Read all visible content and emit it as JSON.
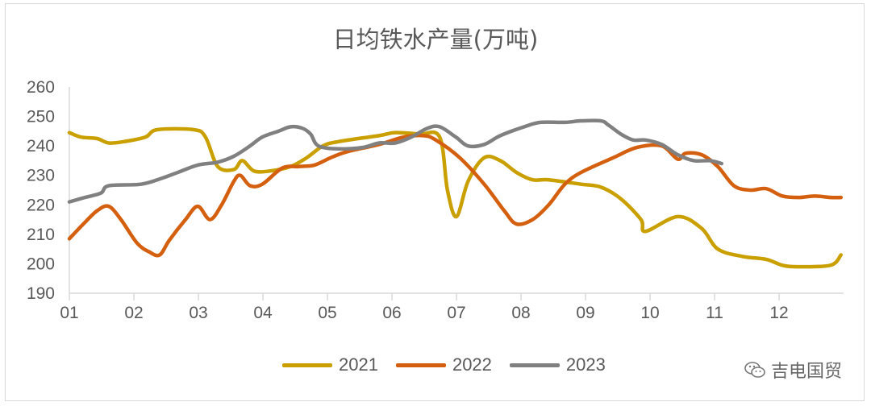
{
  "chart_data": {
    "type": "line",
    "title": "日均铁水产量(万吨)",
    "xlabel": "",
    "ylabel": "",
    "x_ticks": [
      "01",
      "02",
      "03",
      "04",
      "05",
      "06",
      "07",
      "08",
      "09",
      "10",
      "11",
      "12"
    ],
    "xlim": [
      1,
      13
    ],
    "ylim": [
      190,
      260
    ],
    "y_ticks": [
      190,
      200,
      210,
      220,
      230,
      240,
      250,
      260
    ],
    "grid": false,
    "legend_position": "bottom",
    "series": [
      {
        "name": "2021",
        "color": "#C9A000",
        "x": [
          1.0,
          1.18,
          1.43,
          1.61,
          1.86,
          2.18,
          2.36,
          2.93,
          3.11,
          3.3,
          3.55,
          3.68,
          3.86,
          4.11,
          4.43,
          4.68,
          4.93,
          5.18,
          5.8,
          6.05,
          6.43,
          6.74,
          6.86,
          7.0,
          7.18,
          7.43,
          7.68,
          7.93,
          8.18,
          8.43,
          8.93,
          9.24,
          9.55,
          9.86,
          9.93,
          10.43,
          10.8,
          11.05,
          11.43,
          11.8,
          12.05,
          12.3,
          12.8,
          12.96
        ],
        "y": [
          244.5,
          243,
          242.5,
          241,
          241.5,
          243,
          245.5,
          245.5,
          243,
          233,
          232,
          235,
          231.5,
          231.5,
          233,
          236,
          240,
          241.5,
          243.5,
          244.5,
          244,
          243,
          225,
          216,
          228,
          236,
          235,
          231,
          228.5,
          228.5,
          227,
          226,
          222,
          215,
          211,
          216,
          212,
          205,
          202.5,
          201.5,
          199.5,
          199,
          199.5,
          203
        ]
      },
      {
        "name": "2022",
        "color": "#D4600F",
        "x": [
          1.0,
          1.24,
          1.43,
          1.61,
          1.8,
          2.05,
          2.24,
          2.4,
          2.55,
          2.8,
          2.99,
          3.18,
          3.36,
          3.55,
          3.65,
          3.8,
          3.99,
          4.3,
          4.55,
          4.8,
          5.05,
          5.3,
          5.8,
          6.18,
          6.49,
          6.68,
          7.05,
          7.43,
          7.74,
          7.93,
          8.18,
          8.43,
          8.68,
          8.93,
          9.43,
          9.8,
          10.18,
          10.43,
          10.55,
          10.8,
          11.05,
          11.3,
          11.55,
          11.8,
          12.05,
          12.3,
          12.55,
          12.8,
          12.96
        ],
        "y": [
          208.5,
          214,
          218,
          219.5,
          215,
          207,
          204,
          203,
          208,
          215,
          219.5,
          215,
          220,
          228,
          230,
          226.5,
          227,
          232.5,
          233,
          233.5,
          236,
          238,
          240.5,
          243,
          243.5,
          242,
          236,
          227,
          218,
          213.5,
          215,
          220,
          227,
          231,
          236,
          239.5,
          240,
          235.5,
          237.5,
          237,
          233,
          226.5,
          225,
          225.5,
          223,
          222.5,
          223,
          222.5,
          222.5
        ]
      },
      {
        "name": "2023",
        "color": "#808080",
        "x": [
          1.0,
          1.24,
          1.49,
          1.61,
          2.11,
          2.43,
          2.68,
          2.99,
          3.3,
          3.55,
          3.8,
          3.99,
          4.24,
          4.43,
          4.61,
          4.74,
          4.86,
          5.18,
          5.55,
          5.8,
          6.05,
          6.3,
          6.55,
          6.74,
          6.99,
          7.18,
          7.43,
          7.68,
          8.05,
          8.3,
          8.68,
          8.93,
          9.24,
          9.36,
          9.55,
          9.74,
          9.93,
          10.18,
          10.43,
          10.68,
          10.93,
          11.11
        ],
        "y": [
          221,
          222.5,
          224,
          226.5,
          227,
          229,
          231,
          233.5,
          234.5,
          236.5,
          240,
          243,
          245,
          246.5,
          246,
          244,
          240,
          239,
          239.5,
          241,
          241,
          243,
          246,
          246.5,
          243,
          240,
          240.5,
          243.5,
          246.5,
          248,
          248,
          248.5,
          248.5,
          247,
          244,
          242,
          242,
          240.5,
          237,
          235,
          235,
          234
        ]
      }
    ]
  },
  "watermark": {
    "text": "吉电国贸",
    "icon": "wechat-icon"
  }
}
